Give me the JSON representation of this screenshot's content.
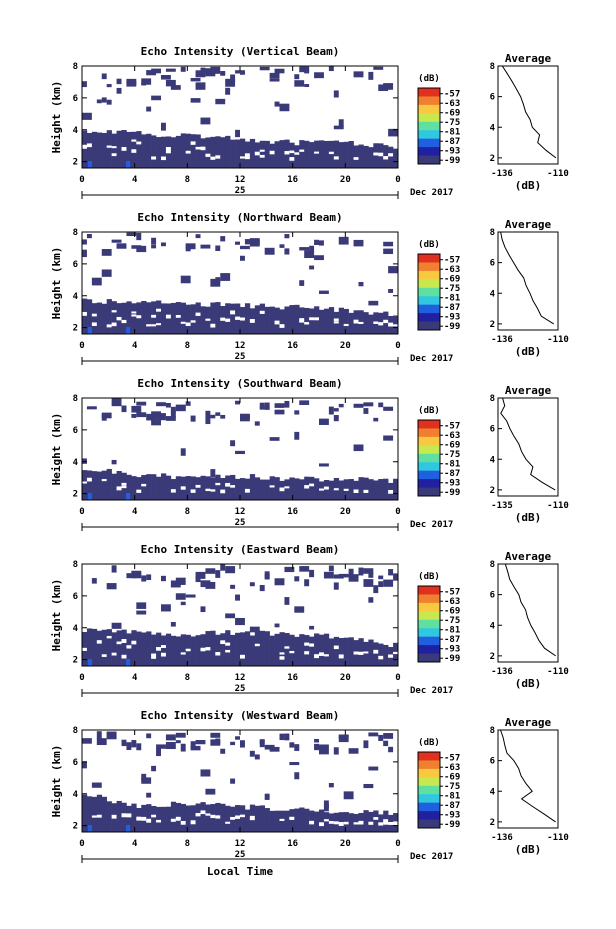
{
  "figure": {
    "xlabel": "Local Time",
    "date_label": "25",
    "date_suffix": "Dec 2017",
    "ylabel": "Height (km)",
    "colorbar_unit": "(dB)",
    "avg_title": "Average",
    "avg_xlabel": "(dB)"
  },
  "chart_data": [
    {
      "type": "heatmap",
      "title": "Echo Intensity (Vertical Beam)",
      "x_ticks": [
        "0",
        "4",
        "8",
        "12",
        "16",
        "20",
        "0"
      ],
      "y_ticks": [
        "2",
        "4",
        "6",
        "8"
      ],
      "xlim": [
        0,
        24
      ],
      "ylim": [
        1.6,
        8
      ],
      "solid_top_km": [
        3.9,
        3.8,
        3.6,
        3.4,
        3.2,
        3.2,
        2.9
      ],
      "sparse_top": true,
      "colorbar": {
        "unit": "(dB)",
        "ticks": [
          "-57",
          "-63",
          "-69",
          "-75",
          "-81",
          "-87",
          "-93",
          "-99"
        ],
        "colors": [
          "#e03020",
          "#f08030",
          "#f8c840",
          "#c8e850",
          "#60e0a0",
          "#30c8e0",
          "#2060e0",
          "#2020a0",
          "#3a3a78"
        ]
      },
      "average": {
        "title": "Average",
        "xlabel": "(dB)",
        "x_ticks": [
          "-136",
          "-110"
        ],
        "y_ticks": [
          "2",
          "4",
          "6",
          "8"
        ],
        "xlim": [
          -136,
          -110
        ],
        "ylim": [
          1.6,
          8
        ],
        "heights": [
          8.0,
          7.5,
          7.0,
          6.5,
          6.0,
          5.5,
          5.0,
          4.5,
          4.0,
          3.5,
          3.0,
          2.5,
          2.0
        ],
        "values": [
          -134,
          -132,
          -130,
          -128,
          -126,
          -125,
          -124,
          -122,
          -121,
          -118,
          -119,
          -115,
          -111
        ]
      }
    },
    {
      "type": "heatmap",
      "title": "Echo Intensity (Northward Beam)",
      "x_ticks": [
        "0",
        "4",
        "8",
        "12",
        "16",
        "20",
        "0"
      ],
      "y_ticks": [
        "2",
        "4",
        "6",
        "8"
      ],
      "xlim": [
        0,
        24
      ],
      "ylim": [
        1.6,
        8
      ],
      "solid_top_km": [
        3.7,
        3.6,
        3.5,
        3.4,
        3.3,
        3.1,
        2.8
      ],
      "sparse_top": true,
      "colorbar": {
        "unit": "(dB)",
        "ticks": [
          "-57",
          "-63",
          "-69",
          "-75",
          "-81",
          "-87",
          "-93",
          "-99"
        ],
        "colors": [
          "#e03020",
          "#f08030",
          "#f8c840",
          "#c8e850",
          "#60e0a0",
          "#30c8e0",
          "#2060e0",
          "#2020a0",
          "#3a3a78"
        ]
      },
      "average": {
        "title": "Average",
        "xlabel": "(dB)",
        "x_ticks": [
          "-136",
          "-110"
        ],
        "y_ticks": [
          "2",
          "4",
          "6",
          "8"
        ],
        "xlim": [
          -136,
          -110
        ],
        "ylim": [
          1.6,
          8
        ],
        "heights": [
          8.0,
          7.5,
          7.0,
          6.5,
          6.0,
          5.5,
          5.0,
          4.5,
          4.0,
          3.5,
          3.0,
          2.5,
          2.0
        ],
        "values": [
          -135,
          -134,
          -133,
          -131,
          -129,
          -127,
          -125,
          -124,
          -122,
          -121,
          -119,
          -117,
          -112
        ]
      }
    },
    {
      "type": "heatmap",
      "title": "Echo Intensity (Southward Beam)",
      "x_ticks": [
        "0",
        "4",
        "8",
        "12",
        "16",
        "20",
        "0"
      ],
      "y_ticks": [
        "2",
        "4",
        "6",
        "8"
      ],
      "xlim": [
        0,
        24
      ],
      "ylim": [
        1.6,
        8
      ],
      "solid_top_km": [
        3.6,
        3.2,
        3.0,
        3.1,
        2.9,
        2.9,
        2.8
      ],
      "sparse_top": true,
      "colorbar": {
        "unit": "(dB)",
        "ticks": [
          "-57",
          "-63",
          "-69",
          "-75",
          "-81",
          "-87",
          "-93",
          "-99"
        ],
        "colors": [
          "#e03020",
          "#f08030",
          "#f8c840",
          "#c8e850",
          "#60e0a0",
          "#30c8e0",
          "#2060e0",
          "#2020a0",
          "#3a3a78"
        ]
      },
      "average": {
        "title": "Average",
        "xlabel": "(dB)",
        "x_ticks": [
          "-135",
          "-110"
        ],
        "y_ticks": [
          "2",
          "4",
          "6",
          "8"
        ],
        "xlim": [
          -136,
          -110
        ],
        "ylim": [
          1.6,
          8
        ],
        "heights": [
          8.0,
          7.5,
          7.0,
          6.5,
          6.0,
          5.5,
          5.0,
          4.5,
          4.0,
          3.5,
          3.0,
          2.5,
          2.0
        ],
        "values": [
          -134,
          -133,
          -135,
          -132,
          -131,
          -129,
          -127,
          -126,
          -124,
          -121,
          -122,
          -117,
          -111
        ]
      }
    },
    {
      "type": "heatmap",
      "title": "Echo Intensity (Eastward Beam)",
      "x_ticks": [
        "0",
        "4",
        "8",
        "12",
        "16",
        "20",
        "0"
      ],
      "y_ticks": [
        "2",
        "4",
        "6",
        "8"
      ],
      "xlim": [
        0,
        24
      ],
      "ylim": [
        1.6,
        8
      ],
      "solid_top_km": [
        3.9,
        3.7,
        3.6,
        3.7,
        3.6,
        3.4,
        2.9
      ],
      "sparse_top": true,
      "colorbar": {
        "unit": "(dB)",
        "ticks": [
          "-57",
          "-63",
          "-69",
          "-75",
          "-81",
          "-87",
          "-93",
          "-99"
        ],
        "colors": [
          "#e03020",
          "#f08030",
          "#f8c840",
          "#c8e850",
          "#60e0a0",
          "#30c8e0",
          "#2060e0",
          "#2020a0",
          "#3a3a78"
        ]
      },
      "average": {
        "title": "Average",
        "xlabel": "(dB)",
        "x_ticks": [
          "-136",
          "-110"
        ],
        "y_ticks": [
          "2",
          "4",
          "6",
          "8"
        ],
        "xlim": [
          -136,
          -110
        ],
        "ylim": [
          1.6,
          8
        ],
        "heights": [
          8.0,
          7.5,
          7.0,
          6.5,
          6.0,
          5.5,
          5.0,
          4.5,
          4.0,
          3.5,
          3.0,
          2.5,
          2.0
        ],
        "values": [
          -133,
          -132,
          -131,
          -129,
          -127,
          -126,
          -124,
          -123,
          -122,
          -120,
          -118,
          -116,
          -111
        ]
      }
    },
    {
      "type": "heatmap",
      "title": "Echo Intensity (Westward Beam)",
      "x_ticks": [
        "0",
        "4",
        "8",
        "12",
        "16",
        "20",
        "0"
      ],
      "y_ticks": [
        "2",
        "4",
        "6",
        "8"
      ],
      "xlim": [
        0,
        24
      ],
      "ylim": [
        1.6,
        8
      ],
      "solid_top_km": [
        4.0,
        3.2,
        3.4,
        3.2,
        3.0,
        2.9,
        2.8
      ],
      "sparse_top": true,
      "colorbar": {
        "unit": "(dB)",
        "ticks": [
          "-57",
          "-63",
          "-69",
          "-75",
          "-81",
          "-87",
          "-93",
          "-99"
        ],
        "colors": [
          "#e03020",
          "#f08030",
          "#f8c840",
          "#c8e850",
          "#60e0a0",
          "#30c8e0",
          "#2060e0",
          "#2020a0",
          "#3a3a78"
        ]
      },
      "average": {
        "title": "Average",
        "xlabel": "(dB)",
        "x_ticks": [
          "-136",
          "-110"
        ],
        "y_ticks": [
          "2",
          "4",
          "6",
          "8"
        ],
        "xlim": [
          -136,
          -110
        ],
        "ylim": [
          1.6,
          8
        ],
        "heights": [
          8.0,
          7.5,
          7.0,
          6.5,
          6.0,
          5.5,
          5.0,
          4.5,
          4.0,
          3.5,
          3.0,
          2.5,
          2.0
        ],
        "values": [
          -135,
          -134,
          -133,
          -132,
          -129,
          -127,
          -126,
          -124,
          -121,
          -126,
          -121,
          -116,
          -111
        ]
      }
    }
  ]
}
